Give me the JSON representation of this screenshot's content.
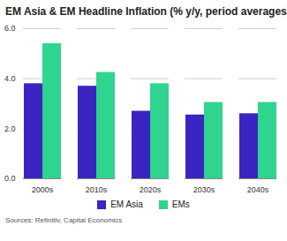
{
  "chart_data": {
    "type": "bar",
    "title": "EM Asia & EM Headline Inflation (% y/y, period averages)",
    "caption": "Sources: Refinitiv, Capital Economics",
    "categories": [
      "2000s",
      "2010s",
      "2020s",
      "2030s",
      "2040s"
    ],
    "series": [
      {
        "name": "EM Asia",
        "color": "#3a24c2",
        "values": [
          3.8,
          3.7,
          2.7,
          2.55,
          2.6
        ]
      },
      {
        "name": "EMs",
        "color": "#2fd48f",
        "values": [
          5.4,
          4.25,
          3.8,
          3.05,
          3.05
        ]
      }
    ],
    "ylim": [
      0,
      6
    ],
    "yticks": [
      0,
      2,
      4,
      6
    ],
    "grid": true,
    "legend": "bottom"
  }
}
